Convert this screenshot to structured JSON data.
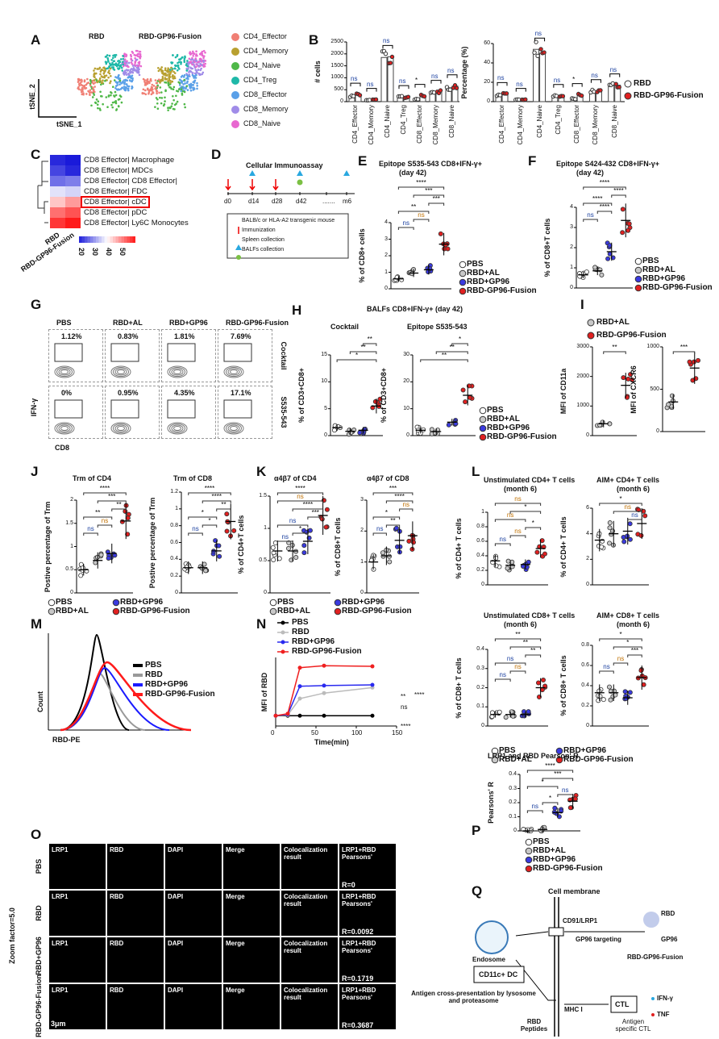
{
  "colors": {
    "PBS": "#ffffff",
    "RBD+AL": "#c8c8c8",
    "RBD+GP96": "#3a3adf",
    "RBD-GP96-Fusion": "#e02020",
    "RBD": "#c8c8c8"
  },
  "panel_labels": [
    "A",
    "B",
    "C",
    "D",
    "E",
    "F",
    "G",
    "H",
    "I",
    "J",
    "K",
    "L",
    "M",
    "N",
    "O",
    "P",
    "Q"
  ],
  "A": {
    "titles": [
      "RBD",
      "RBD-GP96-Fusion"
    ],
    "xaxis": "tSNE_1",
    "yaxis": "tSNE_2",
    "clusters": [
      {
        "name": "CD4_Effector",
        "color": "#f07f74"
      },
      {
        "name": "CD4_Memory",
        "color": "#b8a030"
      },
      {
        "name": "CD4_Naive",
        "color": "#4fb848"
      },
      {
        "name": "CD4_Treg",
        "color": "#1fb8a8"
      },
      {
        "name": "CD8_Effector",
        "color": "#5aa0e8"
      },
      {
        "name": "CD8_Memory",
        "color": "#a08ce8"
      },
      {
        "name": "CD8_Naive",
        "color": "#e868d0"
      }
    ]
  },
  "B": {
    "categories": [
      "CD4_Effector",
      "CD4_Memory",
      "CD4_Naive",
      "CD4_Treg",
      "CD8_Effector",
      "CD8_Memory",
      "CD8_Naive"
    ],
    "sig": [
      "ns",
      "ns",
      "ns",
      "ns",
      "*",
      "ns",
      "ns"
    ],
    "legend": [
      "RBD",
      "RBD-GP96-Fusion"
    ],
    "charts": [
      {
        "ylabel": "# cells",
        "yticks": [
          0,
          500,
          1000,
          1500,
          2000,
          2500
        ],
        "RBD": [
          230,
          60,
          1850,
          200,
          100,
          380,
          580
        ],
        "RBD-GP96-Fusion": [
          300,
          80,
          1880,
          180,
          250,
          420,
          650
        ]
      },
      {
        "ylabel": "Percentage (%)",
        "yticks": [
          0,
          20,
          40,
          60
        ],
        "RBD": [
          7,
          2,
          54,
          6,
          3,
          11,
          17
        ],
        "RBD-GP96-Fusion": [
          8,
          2,
          50,
          5,
          7,
          11,
          17
        ]
      }
    ]
  },
  "C": {
    "rows": [
      "CD8 Effector| Macrophage",
      "CD8 Effector| MDCs",
      "CD8 Effector| CD8 Effector|",
      "CD8 Effector| FDC",
      "CD8 Effector| cDC",
      "CD8 Effector| pDC",
      "CD8 Effector| Ly6C Monocytes"
    ],
    "cols": [
      "RBD",
      "RBD-GP96-Fusion"
    ],
    "highlight": "CD8 Effector| cDC",
    "scale": [
      "20",
      "30",
      "40",
      "50"
    ],
    "values": [
      [
        20,
        19
      ],
      [
        22,
        20
      ],
      [
        25,
        26
      ],
      [
        33,
        32
      ],
      [
        39,
        42
      ],
      [
        45,
        47
      ],
      [
        49,
        51
      ]
    ]
  },
  "D": {
    "title": "Cellular Immunoassay",
    "timepoints": [
      "d0",
      "d14",
      "d28",
      "d42",
      ".......",
      "m6"
    ],
    "legend": [
      "BALB/c or HLA-A2 transgenic mouse",
      "Immunization",
      "Spleen collection",
      "BALFs collection"
    ]
  },
  "groups": [
    "PBS",
    "RBD+AL",
    "RBD+GP96",
    "RBD-GP96-Fusion"
  ],
  "charts": {
    "E": {
      "title": "Epitope S535-543 CD8+IFN-γ+",
      "title2": "(day 42)",
      "ylabel": "% of CD8+ cells",
      "yticks": [
        0,
        1,
        2,
        3,
        4
      ],
      "means": [
        0.6,
        0.95,
        1.15,
        2.7
      ],
      "sig": [
        [
          0,
          1,
          "ns"
        ],
        [
          1,
          2,
          "ns"
        ],
        [
          0,
          2,
          "**"
        ],
        [
          2,
          3,
          "***"
        ],
        [
          1,
          3,
          "***"
        ],
        [
          0,
          3,
          "****"
        ]
      ]
    },
    "F": {
      "title": "Epitope S424-432 CD8+IFN-γ+",
      "title2": "(day 42)",
      "ylabel": "% of CD8+T cells",
      "yticks": [
        0,
        1,
        2,
        3,
        4
      ],
      "means": [
        0.65,
        0.85,
        1.8,
        3.35
      ],
      "sig": [
        [
          0,
          1,
          "ns"
        ],
        [
          1,
          2,
          "****"
        ],
        [
          0,
          2,
          "****"
        ],
        [
          2,
          3,
          "****"
        ],
        [
          0,
          3,
          "****"
        ]
      ]
    },
    "H1": {
      "title": "Cocktail",
      "ylabel": "% of CD3+CD8+",
      "yticks": [
        0,
        5,
        10,
        15
      ],
      "means": [
        1.5,
        0.8,
        1.0,
        5.5
      ],
      "sig": [
        [
          0,
          3,
          "*"
        ],
        [
          1,
          3,
          "**"
        ],
        [
          2,
          3,
          "**"
        ]
      ]
    },
    "H2": {
      "title": "Epitope S535-543",
      "ylabel": "% of CD3+CD8+",
      "yticks": [
        0,
        10,
        20,
        30
      ],
      "means": [
        2,
        1.5,
        5,
        15
      ],
      "sig": [
        [
          0,
          3,
          "**"
        ],
        [
          1,
          3,
          "**"
        ],
        [
          2,
          3,
          "*"
        ]
      ]
    },
    "I1": {
      "ylabel": "MFI of CD11a",
      "yticks": [
        0,
        1000,
        2000,
        3000
      ],
      "means": [
        400,
        1700
      ],
      "groups": [
        1,
        3
      ],
      "sig": [
        [
          0,
          1,
          "**"
        ]
      ]
    },
    "I2": {
      "ylabel": "MFI of CXCR6",
      "yticks": [
        0,
        500,
        1000
      ],
      "means": [
        350,
        750
      ],
      "groups": [
        1,
        3
      ],
      "sig": [
        [
          0,
          1,
          "***"
        ]
      ]
    },
    "J1": {
      "title": "Trm of CD4",
      "ylabel": "Postive percentage of Trm",
      "yticks": [
        0,
        0.5,
        1.0,
        1.5,
        2.0
      ],
      "means": [
        0.5,
        0.7,
        0.85,
        1.55
      ],
      "sig": [
        [
          0,
          1,
          "ns"
        ],
        [
          1,
          2,
          "ns"
        ],
        [
          0,
          2,
          "**"
        ],
        [
          2,
          3,
          "**"
        ],
        [
          1,
          3,
          "***"
        ],
        [
          0,
          3,
          "****"
        ]
      ]
    },
    "J2": {
      "title": "Trm of CD8",
      "ylabel": "Postive percentage of Trm",
      "yticks": [
        0,
        0.2,
        0.4,
        0.6,
        0.8,
        1.0,
        1.2
      ],
      "means": [
        0.3,
        0.3,
        0.5,
        0.85
      ],
      "sig": [
        [
          0,
          1,
          "ns"
        ],
        [
          1,
          2,
          "*"
        ],
        [
          0,
          2,
          "*"
        ],
        [
          2,
          3,
          "**"
        ],
        [
          1,
          3,
          "****"
        ],
        [
          0,
          3,
          "****"
        ]
      ]
    },
    "K1": {
      "title": "α4β7 of CD4",
      "ylabel": "% of CD4+T cells",
      "yticks": [
        0,
        0.5,
        1.0,
        1.5
      ],
      "means": [
        0.65,
        0.65,
        0.8,
        1.2
      ],
      "sig": [
        [
          0,
          1,
          "ns"
        ],
        [
          1,
          2,
          "*"
        ],
        [
          0,
          2,
          "ns"
        ],
        [
          2,
          3,
          "***"
        ],
        [
          1,
          3,
          "****"
        ],
        [
          0,
          3,
          "ns"
        ],
        [
          0,
          3,
          "****"
        ]
      ]
    },
    "K2": {
      "title": "α4β7 of CD8",
      "ylabel": "% of CD8+T cells",
      "yticks": [
        0,
        1,
        2,
        3
      ],
      "means": [
        1.0,
        1.2,
        1.7,
        1.85
      ],
      "sig": [
        [
          0,
          1,
          "ns"
        ],
        [
          1,
          2,
          "**"
        ],
        [
          0,
          2,
          "*"
        ],
        [
          2,
          3,
          "ns"
        ],
        [
          1,
          3,
          "****"
        ],
        [
          0,
          3,
          "***"
        ]
      ]
    },
    "L1": {
      "title": "Unstimulated CD4+ T cells",
      "title2": "(month 6)",
      "ylabel": "% of CD4+ T cells",
      "yticks": [
        0,
        0.2,
        0.4,
        0.6,
        0.8,
        1.0
      ],
      "means": [
        0.33,
        0.27,
        0.28,
        0.5
      ],
      "sig": [
        [
          0,
          1,
          "ns"
        ],
        [
          1,
          2,
          "ns"
        ],
        [
          2,
          3,
          "*"
        ],
        [
          0,
          2,
          "ns"
        ],
        [
          1,
          3,
          "*"
        ],
        [
          0,
          3,
          "ns"
        ]
      ]
    },
    "L2": {
      "title": "AIM+ CD4+ T cells",
      "title2": "(month 6)",
      "ylabel": "% of CD4+ T cells",
      "yticks": [
        0,
        2,
        4,
        6
      ],
      "means": [
        3.5,
        4,
        4.2,
        4.8
      ],
      "sig": [
        [
          2,
          3,
          "ns"
        ],
        [
          1,
          3,
          "ns"
        ],
        [
          0,
          3,
          "*"
        ]
      ]
    },
    "L3": {
      "title": "Unstimulated CD8+ T cells",
      "title2": "(month 6)",
      "ylabel": "% of CD8+ T cells",
      "yticks": [
        0,
        0.1,
        0.2,
        0.3,
        0.4
      ],
      "means": [
        0.06,
        0.06,
        0.06,
        0.2
      ],
      "sig": [
        [
          0,
          1,
          "ns"
        ],
        [
          1,
          2,
          "ns"
        ],
        [
          0,
          2,
          "ns"
        ],
        [
          2,
          3,
          "**"
        ],
        [
          1,
          3,
          "**"
        ],
        [
          0,
          3,
          "**"
        ]
      ]
    },
    "L4": {
      "title": "AIM+ CD8+ T cells",
      "title2": "(month 6)",
      "ylabel": "% of CD8+ T cells",
      "yticks": [
        0,
        0.2,
        0.4,
        0.6,
        0.8
      ],
      "means": [
        0.33,
        0.33,
        0.28,
        0.48
      ],
      "sig": [
        [
          0,
          1,
          "ns"
        ],
        [
          1,
          2,
          "ns"
        ],
        [
          2,
          3,
          "***"
        ],
        [
          1,
          3,
          "*"
        ],
        [
          0,
          3,
          "*"
        ]
      ]
    },
    "P": {
      "title": "LRP1 and RBD Pearson' R",
      "ylabel": "Pearsons' R",
      "yticks": [
        0,
        0.1,
        0.2,
        0.3,
        0.4
      ],
      "means": [
        0,
        0.01,
        0.13,
        0.21
      ],
      "sig": [
        [
          0,
          1,
          "ns"
        ],
        [
          1,
          2,
          "*"
        ],
        [
          2,
          3,
          "ns"
        ],
        [
          0,
          2,
          "*"
        ],
        [
          1,
          3,
          "***"
        ],
        [
          0,
          3,
          "****"
        ]
      ]
    }
  },
  "G": {
    "cols": [
      "PBS",
      "RBD+AL",
      "RBD+GP96",
      "RBD-GP96-Fusion"
    ],
    "rows": [
      "Cocktail",
      "S535-543"
    ],
    "values": [
      [
        "1.12%",
        "0.83%",
        "1.81%",
        "7.69%"
      ],
      [
        "0%",
        "0.95%",
        "4.35%",
        "17.1%"
      ]
    ],
    "yaxis": "IFN-γ",
    "xaxis": "CD8"
  },
  "H": {
    "title": "BALFs CD8+IFN-γ+ (day 42)"
  },
  "M": {
    "legend": [
      "PBS",
      "RBD",
      "RBD+GP96",
      "RBD-GP96-Fusion"
    ],
    "colors": [
      "#000000",
      "#999999",
      "#1a1aff",
      "#ff1a1a"
    ],
    "yaxis": "Count",
    "xaxis": "RBD-PE"
  },
  "N": {
    "legend": [
      "PBS",
      "RBD",
      "RBD+GP96",
      "RBD-GP96-Fusion"
    ],
    "colors": [
      "#000000",
      "#bbbbbb",
      "#2a2aef",
      "#ef2020"
    ],
    "ylabel": "MFI of RBD",
    "xlabel": "Time(min)",
    "xticks": [
      0,
      50,
      100,
      150
    ],
    "x": [
      0,
      15,
      30,
      60,
      120
    ],
    "series": [
      [
        150,
        150,
        150,
        150,
        150
      ],
      [
        150,
        160,
        400,
        480,
        560
      ],
      [
        150,
        170,
        580,
        590,
        600
      ],
      [
        150,
        180,
        850,
        880,
        870
      ]
    ],
    "sig": [
      "**",
      "ns",
      "****",
      "****"
    ]
  },
  "O": {
    "cols": [
      "LRP1",
      "RBD",
      "DAPI",
      "Merge",
      "Colocalization result",
      "LRP1+RBD Pearsons'"
    ],
    "rows": [
      "PBS",
      "RBD",
      "RBD+GP96",
      "RBD-GP96-Fusion"
    ],
    "r": [
      "R=0",
      "R=0.0092",
      "R=0.1719",
      "R=0.3687"
    ],
    "side": "Zoom factor=5.0",
    "scale": "3μm"
  },
  "P_extra": {
    "xlabel": "Cell membrane"
  },
  "Q": {
    "labels": {
      "dc": "CD11c+ DC",
      "endosome": "Endosome",
      "receptor": "CD91/LRP1",
      "targeting": "GP96 targeting",
      "rbd": "RBD",
      "gp96": "GP96",
      "fusion": "RBD-GP96-Fusion",
      "cross": "Antigen cross-presentation by lysosome and proteasome",
      "mhc": "MHC I",
      "peptides": "RBD Peptides",
      "ctl": "CTL",
      "ctl_sub": "Antigen specific CTL",
      "ifn": "IFN-γ",
      "tnf": "TNF"
    }
  }
}
